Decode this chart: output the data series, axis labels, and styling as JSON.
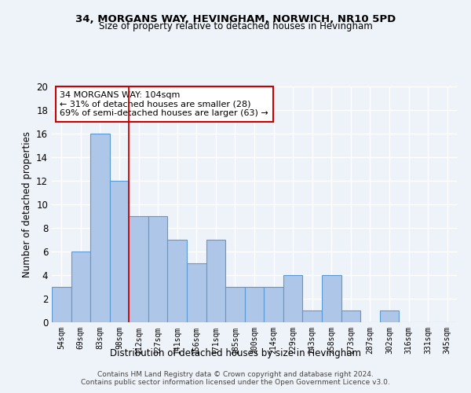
{
  "title1": "34, MORGANS WAY, HEVINGHAM, NORWICH, NR10 5PD",
  "title2": "Size of property relative to detached houses in Hevingham",
  "xlabel": "Distribution of detached houses by size in Hevingham",
  "ylabel": "Number of detached properties",
  "categories": [
    "54sqm",
    "69sqm",
    "83sqm",
    "98sqm",
    "112sqm",
    "127sqm",
    "141sqm",
    "156sqm",
    "171sqm",
    "185sqm",
    "200sqm",
    "214sqm",
    "229sqm",
    "243sqm",
    "258sqm",
    "273sqm",
    "287sqm",
    "302sqm",
    "316sqm",
    "331sqm",
    "345sqm"
  ],
  "values": [
    3,
    6,
    16,
    12,
    9,
    9,
    7,
    5,
    7,
    3,
    3,
    3,
    4,
    1,
    4,
    1,
    0,
    1,
    0,
    0,
    0
  ],
  "bar_color": "#aec6e8",
  "bar_edge_color": "#5b9bd5",
  "vline_x": 3.5,
  "vline_color": "#cc0000",
  "annotation_text": "34 MORGANS WAY: 104sqm\n← 31% of detached houses are smaller (28)\n69% of semi-detached houses are larger (63) →",
  "annotation_box_color": "#ffffff",
  "annotation_box_edge": "#cc0000",
  "ylim": [
    0,
    20
  ],
  "yticks": [
    0,
    2,
    4,
    6,
    8,
    10,
    12,
    14,
    16,
    18,
    20
  ],
  "footer1": "Contains HM Land Registry data © Crown copyright and database right 2024.",
  "footer2": "Contains public sector information licensed under the Open Government Licence v3.0.",
  "bg_color": "#eef2f9",
  "grid_color": "#ffffff"
}
